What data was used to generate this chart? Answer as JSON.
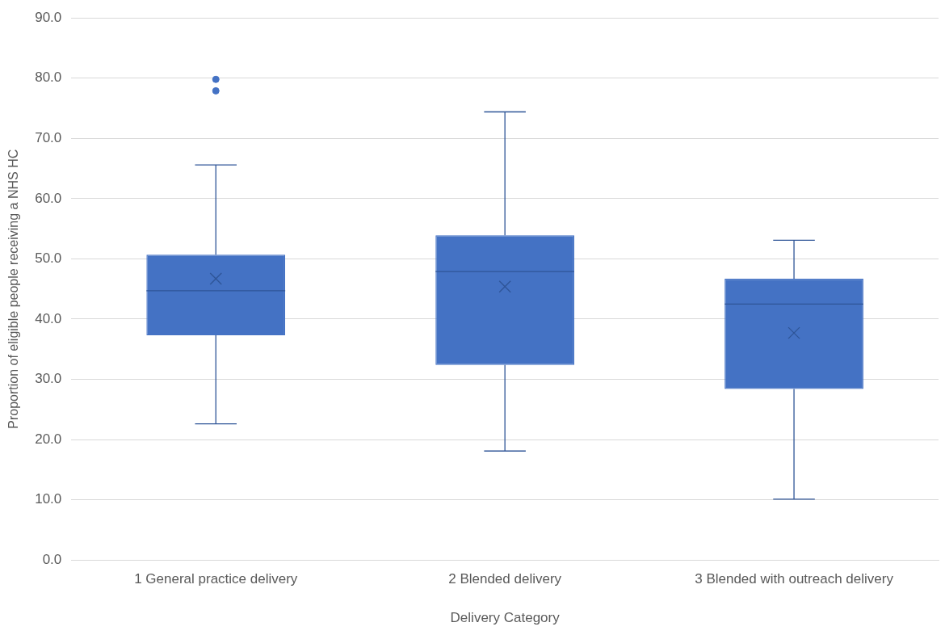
{
  "chart_data": {
    "type": "box",
    "xlabel": "Delivery Category",
    "ylabel": "Proportion of eligible people receiving a NHS HC",
    "categories": [
      "1 General practice delivery",
      "2 Blended delivery",
      "3 Blended with outreach delivery"
    ],
    "boxes": [
      {
        "low": 22.6,
        "q1": 37.3,
        "median": 44.7,
        "q3": 50.7,
        "high": 65.6,
        "mean": 46.7,
        "outliers": [
          79.8,
          77.9
        ]
      },
      {
        "low": 18.1,
        "q1": 32.4,
        "median": 47.9,
        "q3": 53.9,
        "high": 74.4,
        "mean": 45.4
      },
      {
        "low": 10.1,
        "q1": 28.4,
        "median": 42.5,
        "q3": 46.7,
        "high": 53.1,
        "mean": 37.7
      }
    ],
    "color": "#4472c4",
    "ylim": [
      0,
      90
    ],
    "yticks": [
      {
        "value": 0,
        "label": "0.0"
      },
      {
        "value": 10,
        "label": "10.0"
      },
      {
        "value": 20,
        "label": "20.0"
      },
      {
        "value": 30,
        "label": "30.0"
      },
      {
        "value": 40,
        "label": "40.0"
      },
      {
        "value": 50,
        "label": "50.0"
      },
      {
        "value": 60,
        "label": "60.0"
      },
      {
        "value": 70,
        "label": "70.0"
      },
      {
        "value": 80,
        "label": "80.0"
      },
      {
        "value": 90,
        "label": "90.0"
      }
    ],
    "grid": "y"
  }
}
